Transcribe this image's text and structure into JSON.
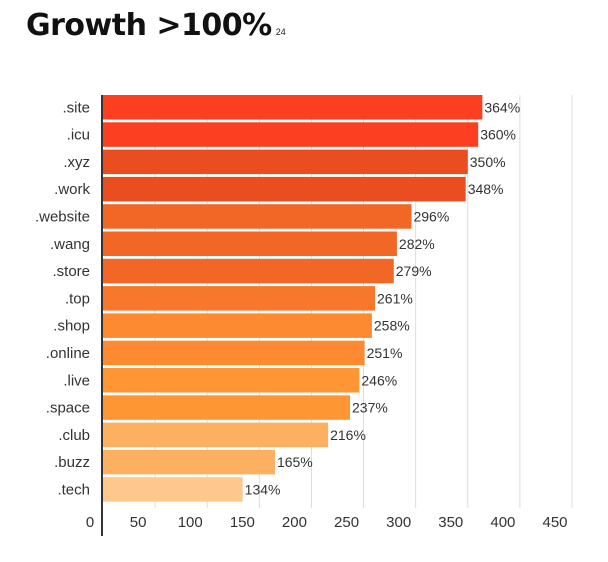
{
  "chart_data": {
    "type": "bar",
    "orientation": "horizontal",
    "title": "Growth >100%",
    "subtitle": "24",
    "categories": [
      ".site",
      ".icu",
      ".xyz",
      ".work",
      ".website",
      ".wang",
      ".store",
      ".top",
      ".shop",
      ".online",
      ".live",
      ".space",
      ".club",
      ".buzz",
      ".tech"
    ],
    "values": [
      364,
      360,
      350,
      348,
      296,
      282,
      279,
      261,
      258,
      251,
      246,
      237,
      216,
      165,
      134
    ],
    "value_labels": [
      "364%",
      "360%",
      "350%",
      "348%",
      "296%",
      "282%",
      "279%",
      "261%",
      "258%",
      "251%",
      "246%",
      "237%",
      "216%",
      "165%",
      "134%"
    ],
    "bar_colors": [
      "#fb3f20",
      "#fb3f20",
      "#ea4e20",
      "#ea4e20",
      "#f26726",
      "#f26726",
      "#f26726",
      "#f7772c",
      "#fd8a30",
      "#fd8a30",
      "#fd9633",
      "#fd9633",
      "#feb061",
      "#feb061",
      "#fec88c"
    ],
    "xlim": [
      0,
      450
    ],
    "xticks": [
      "0",
      "50",
      "100",
      "150",
      "200",
      "250",
      "300",
      "350",
      "400",
      "450"
    ],
    "grid": true
  }
}
